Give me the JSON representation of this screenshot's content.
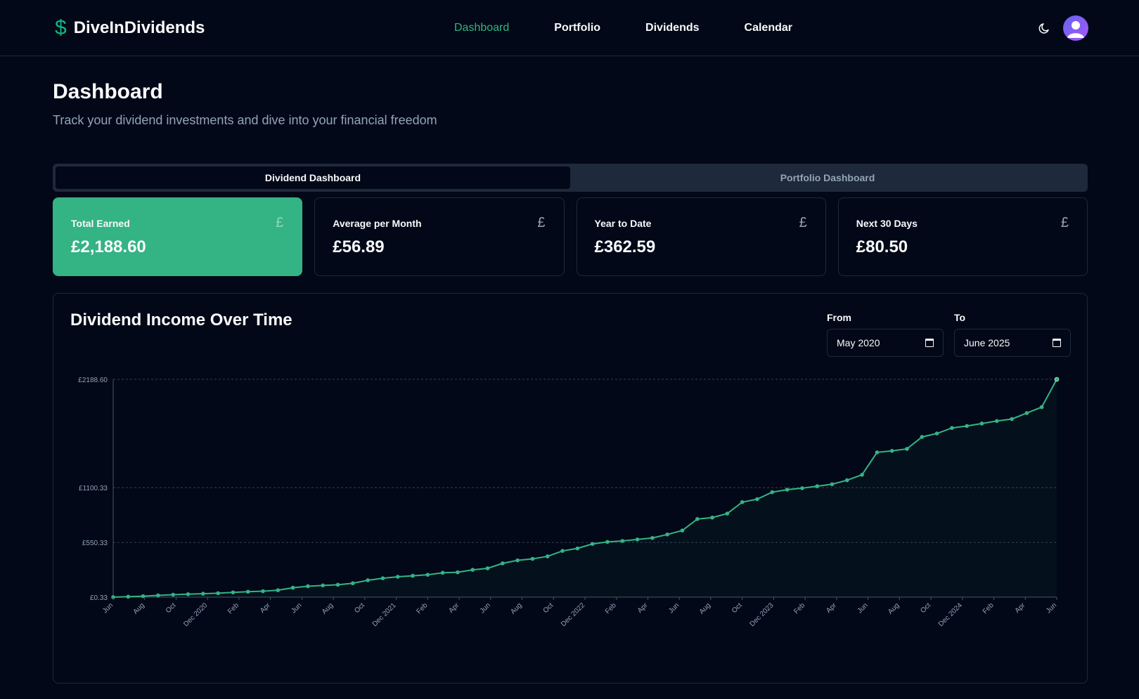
{
  "header": {
    "brand_icon": "$",
    "brand_name": "DiveInDividends",
    "nav": [
      "Dashboard",
      "Portfolio",
      "Dividends",
      "Calendar"
    ],
    "active_nav": "Dashboard",
    "icons": {
      "theme": "moon-icon",
      "avatar": "user-avatar"
    }
  },
  "page": {
    "title": "Dashboard",
    "subtitle": "Track your dividend investments and dive into your financial freedom"
  },
  "tabs": [
    "Dividend Dashboard",
    "Portfolio Dashboard"
  ],
  "stats": [
    {
      "label": "Total Earned",
      "value": "£2,188.60",
      "icon": "£"
    },
    {
      "label": "Average per Month",
      "value": "£56.89",
      "icon": "£"
    },
    {
      "label": "Year to Date",
      "value": "£362.59",
      "icon": "£"
    },
    {
      "label": "Next 30 Days",
      "value": "£80.50",
      "icon": "£"
    }
  ],
  "chart_card": {
    "title": "Dividend Income Over Time",
    "from_label": "From",
    "from_value": "May 2020",
    "to_label": "To",
    "to_value": "June 2025"
  },
  "colors": {
    "accent": "#34b384",
    "background": "#020817",
    "border": "#1e293b",
    "muted": "#94a3b8"
  },
  "chart_data": {
    "type": "area",
    "x_tick_labels": [
      "Jun",
      "Aug",
      "Oct",
      "Dec 2020",
      "Feb",
      "Apr",
      "Jun",
      "Aug",
      "Oct",
      "Dec 2021",
      "Feb",
      "Apr",
      "Jun",
      "Aug",
      "Oct",
      "Dec 2022",
      "Feb",
      "Apr",
      "Jun",
      "Aug",
      "Oct",
      "Dec 2023",
      "Feb",
      "Apr",
      "Jun",
      "Aug",
      "Oct",
      "Dec 2024",
      "Feb",
      "Apr",
      "Jun"
    ],
    "y_tick_labels": [
      "£0.33",
      "£550.33",
      "£1100.33",
      "£2188.60"
    ],
    "y_ticks": [
      0.33,
      550.33,
      1100.33,
      2188.6
    ],
    "ylim": [
      0.33,
      2188.6
    ],
    "x_range": [
      "2020-06",
      "2025-06"
    ],
    "series": [
      {
        "values": [
          0.33,
          5,
          10,
          18,
          25,
          30,
          35,
          40,
          48,
          55,
          60,
          70,
          95,
          110,
          118,
          125,
          140,
          170,
          190,
          205,
          215,
          225,
          245,
          250,
          275,
          290,
          340,
          370,
          385,
          410,
          465,
          490,
          535,
          555,
          565,
          580,
          595,
          630,
          670,
          785,
          800,
          840,
          955,
          985,
          1055,
          1080,
          1095,
          1115,
          1135,
          1175,
          1230,
          1455,
          1470,
          1490,
          1610,
          1645,
          1700,
          1720,
          1745,
          1770,
          1790,
          1850,
          1910,
          2188.6
        ]
      }
    ],
    "grid": true,
    "legend": "none"
  }
}
